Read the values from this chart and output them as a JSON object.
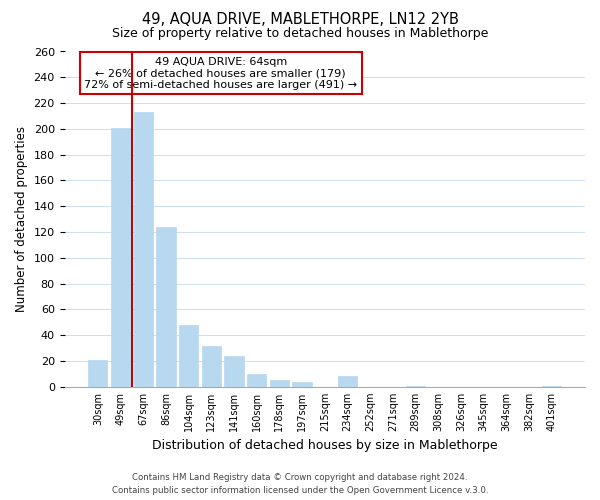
{
  "title": "49, AQUA DRIVE, MABLETHORPE, LN12 2YB",
  "subtitle": "Size of property relative to detached houses in Mablethorpe",
  "xlabel": "Distribution of detached houses by size in Mablethorpe",
  "ylabel": "Number of detached properties",
  "bar_labels": [
    "30sqm",
    "49sqm",
    "67sqm",
    "86sqm",
    "104sqm",
    "123sqm",
    "141sqm",
    "160sqm",
    "178sqm",
    "197sqm",
    "215sqm",
    "234sqm",
    "252sqm",
    "271sqm",
    "289sqm",
    "308sqm",
    "326sqm",
    "345sqm",
    "364sqm",
    "382sqm",
    "401sqm"
  ],
  "bar_values": [
    21,
    201,
    213,
    124,
    48,
    32,
    24,
    10,
    5,
    4,
    0,
    8,
    0,
    0,
    1,
    0,
    0,
    0,
    0,
    0,
    1
  ],
  "bar_color": "#b8d8f0",
  "highlight_color": "#cc0000",
  "vline_x": 1.5,
  "ylim": [
    0,
    260
  ],
  "yticks": [
    0,
    20,
    40,
    60,
    80,
    100,
    120,
    140,
    160,
    180,
    200,
    220,
    240,
    260
  ],
  "annotation_title": "49 AQUA DRIVE: 64sqm",
  "annotation_line1": "← 26% of detached houses are smaller (179)",
  "annotation_line2": "72% of semi-detached houses are larger (491) →",
  "annotation_box_color": "#ffffff",
  "annotation_box_edge": "#cc0000",
  "footer_line1": "Contains HM Land Registry data © Crown copyright and database right 2024.",
  "footer_line2": "Contains public sector information licensed under the Open Government Licence v.3.0.",
  "background_color": "#ffffff",
  "grid_color": "#ccddee"
}
